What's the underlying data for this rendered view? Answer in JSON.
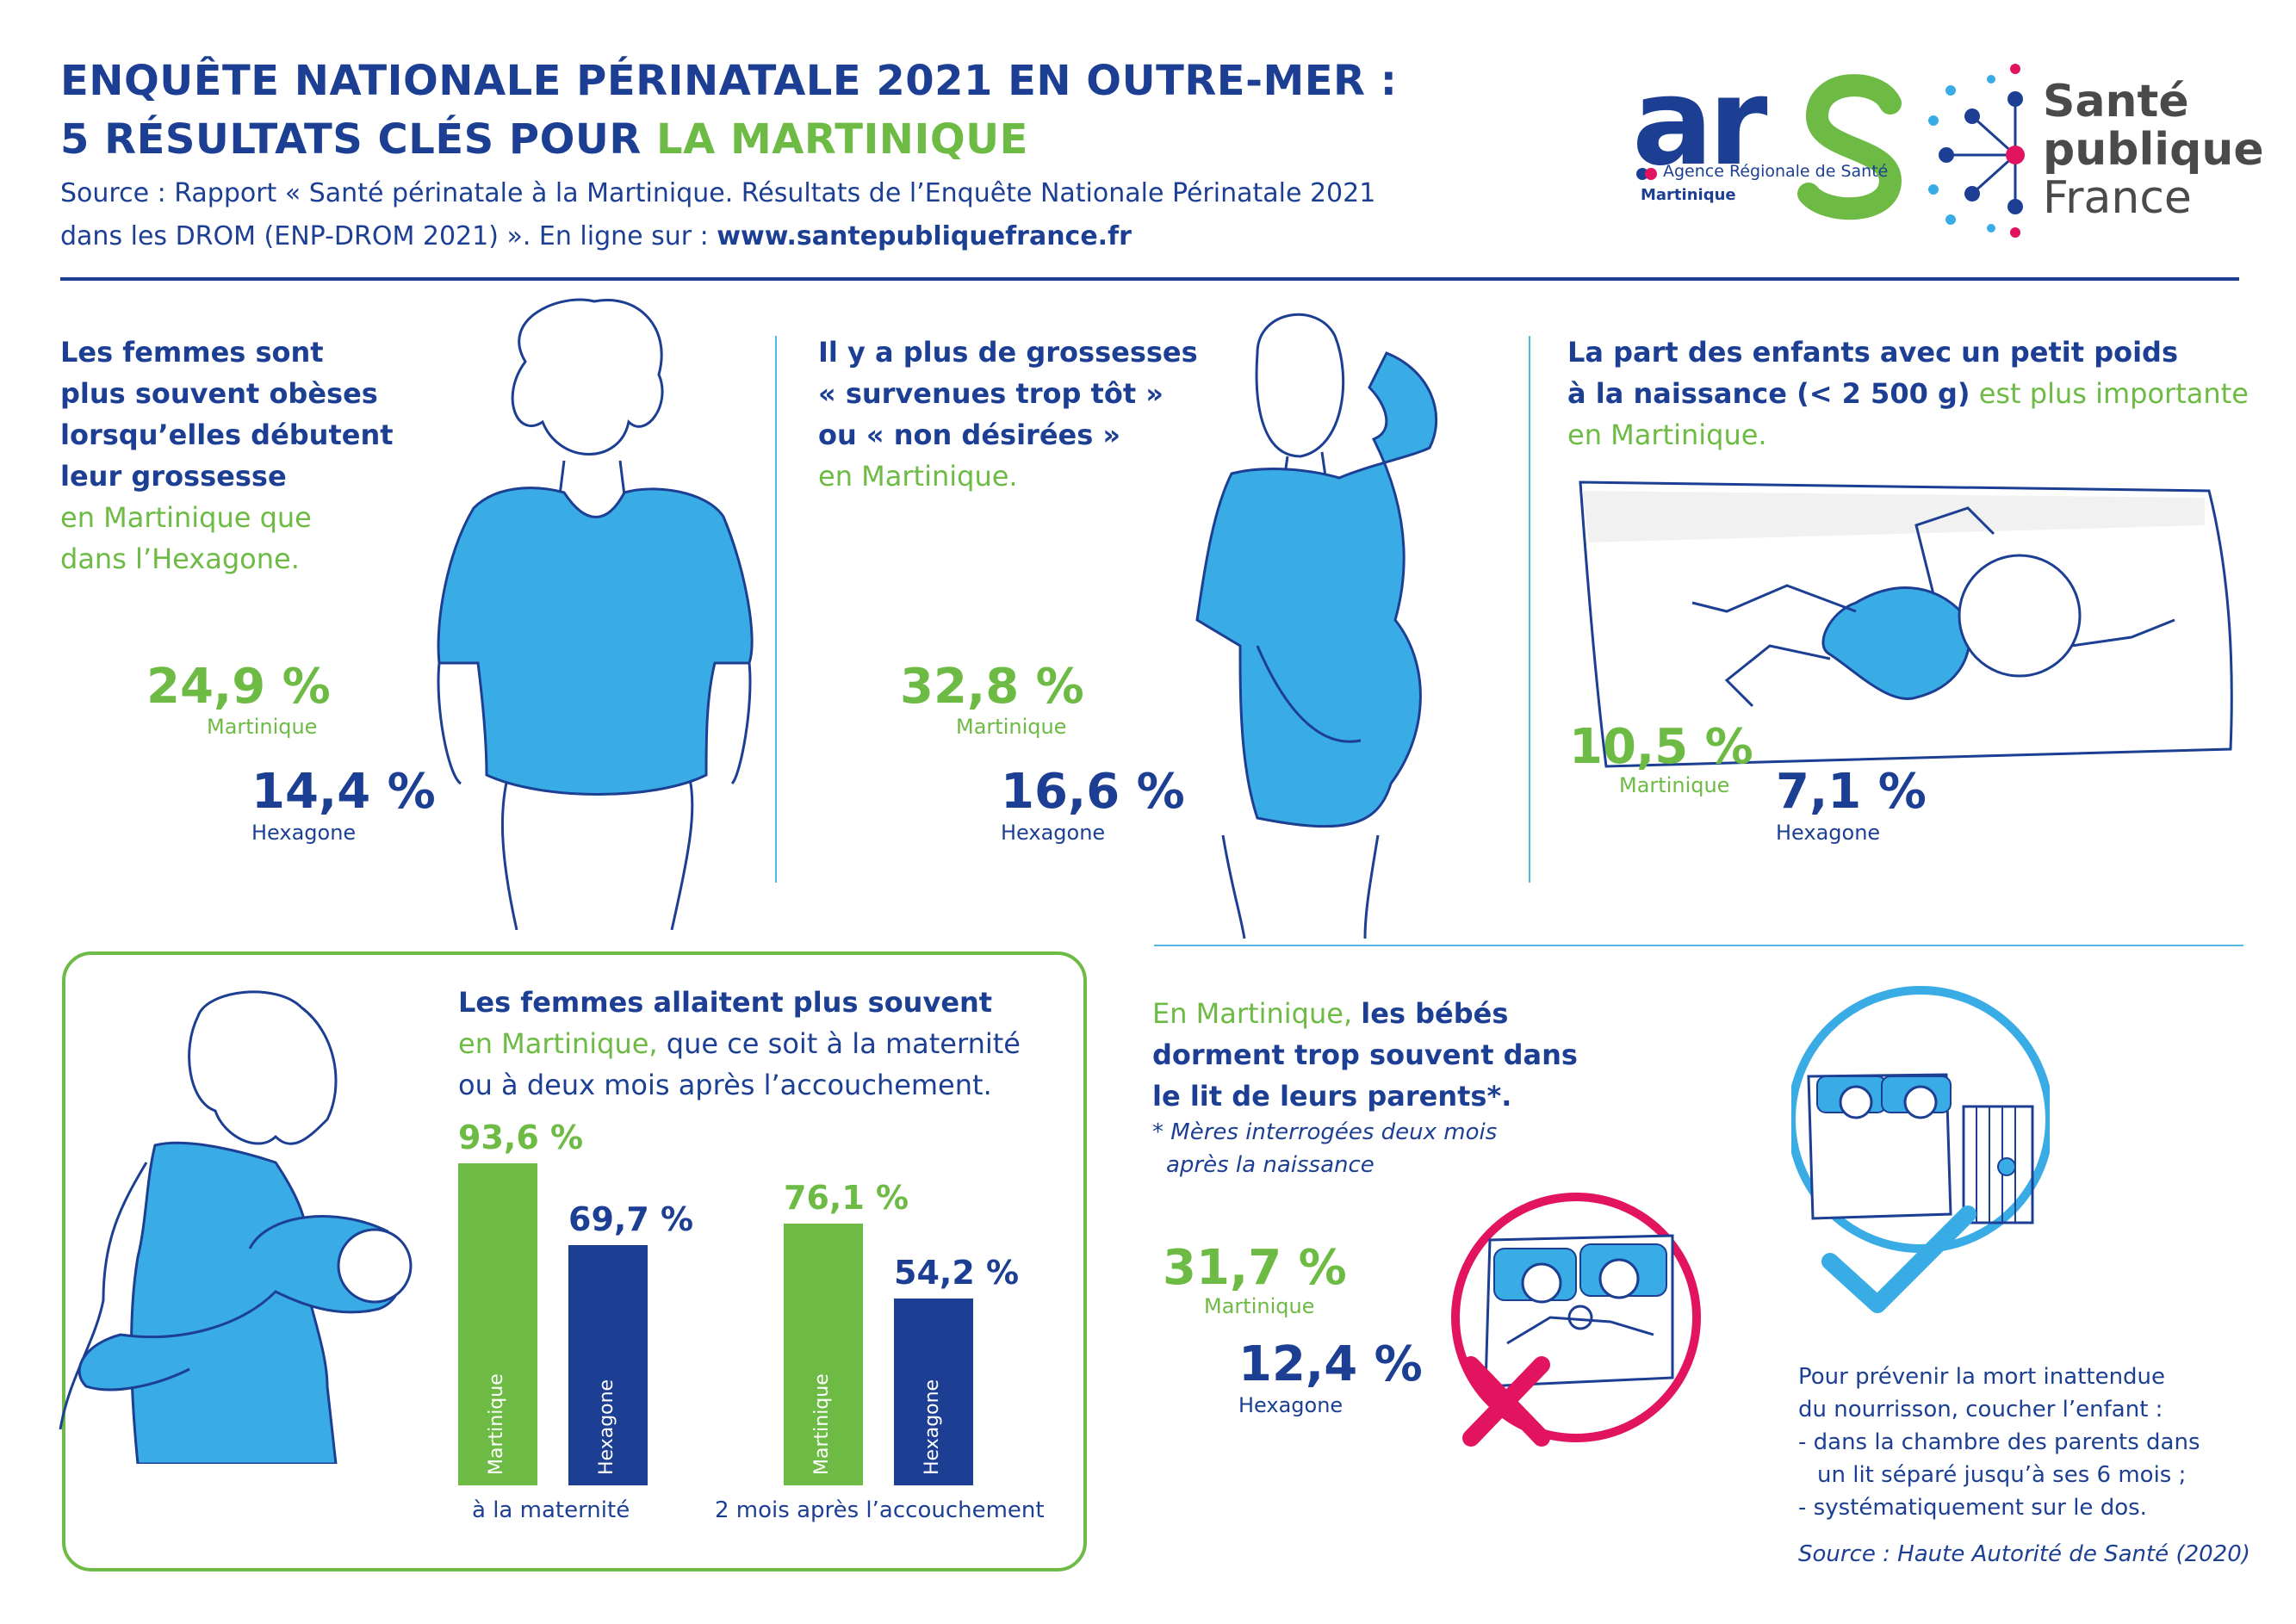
{
  "header": {
    "title_line1": "ENQUÊTE NATIONALE PÉRINATALE 2021 EN OUTRE-MER :",
    "title_line2_a": "5 RÉSULTATS CLÉS POUR ",
    "title_line2_b": "LA MARTINIQUE",
    "source_line1": "Source : Rapport « Santé périnatale à la Martinique. Résultats de l’Enquête Nationale Périnatale 2021",
    "source_line2_a": "dans les DROM (ENP-DROM 2021) ». En ligne sur : ",
    "source_line2_b": "www.santepubliquefrance.fr"
  },
  "logos": {
    "ars_text": "ars",
    "ars_subtitle": "Agence Régionale de Santé",
    "ars_region": "Martinique",
    "spf_line1": "Santé",
    "spf_line2": "publique",
    "spf_line3": "France"
  },
  "colors": {
    "navy": "#1c3f94",
    "green": "#6dbb44",
    "light_blue": "#52b9e9",
    "pink": "#e2145f",
    "figure_blue": "#3aace5"
  },
  "section1": {
    "line1": "Les femmes sont",
    "line2": "plus souvent obèses",
    "line3": "lorsqu’elles débutent",
    "line4": "leur grossesse",
    "line5": "en Martinique que",
    "line6": "dans l’Hexagone.",
    "martinique_value": "24,9 %",
    "martinique_label": "Martinique",
    "hexagone_value": "14,4 %",
    "hexagone_label": "Hexagone"
  },
  "section2": {
    "line1": "Il y a plus de grossesses",
    "line2": "« survenues trop tôt »",
    "line3": "ou « non désirées »",
    "line4": "en Martinique.",
    "martinique_value": "32,8 %",
    "martinique_label": "Martinique",
    "hexagone_value": "16,6 %",
    "hexagone_label": "Hexagone"
  },
  "section3": {
    "line1": "La part des enfants avec un petit poids",
    "line2_a": "à la naissance (< 2 500 g)",
    "line2_b": " est plus importante",
    "line3": "en Martinique.",
    "martinique_value": "10,5 %",
    "martinique_label": "Martinique",
    "hexagone_value": "7,1 %",
    "hexagone_label": "Hexagone"
  },
  "section4": {
    "line1": "Les femmes allaitent plus souvent",
    "line2_a": "en Martinique,",
    "line2_b": " que ce soit à la maternité",
    "line3": "ou à deux mois après l’accouchement."
  },
  "chart_data": {
    "type": "bar",
    "categories": [
      "à la maternité",
      "2 mois après l’accouchement"
    ],
    "series": [
      {
        "name": "Martinique",
        "values": [
          93.6,
          76.1
        ],
        "labels": [
          "93,6 %",
          "76,1 %"
        ],
        "color": "#6dbb44"
      },
      {
        "name": "Hexagone",
        "values": [
          69.7,
          54.2
        ],
        "labels": [
          "69,7 %",
          "54,2 %"
        ],
        "color": "#1c3f94"
      }
    ],
    "ylim": [
      0,
      100
    ]
  },
  "section5": {
    "line1_a": "En Martinique, ",
    "line1_b": "les bébés",
    "line2": "dorment trop souvent dans",
    "line3": "le lit de leurs parents*.",
    "note1": "* Mères interrogées deux mois",
    "note2": "après la naissance",
    "martinique_value": "31,7 %",
    "martinique_label": "Martinique",
    "hexagone_value": "12,4 %",
    "hexagone_label": "Hexagone",
    "advice1": "Pour prévenir la mort inattendue",
    "advice2": "du nourrisson, coucher l’enfant :",
    "advice3": "- dans la chambre des parents dans",
    "advice4": "un lit séparé jusqu’à ses 6 mois ;",
    "advice5": "- systématiquement sur le dos.",
    "source": "Source : Haute Autorité de Santé (2020)"
  }
}
